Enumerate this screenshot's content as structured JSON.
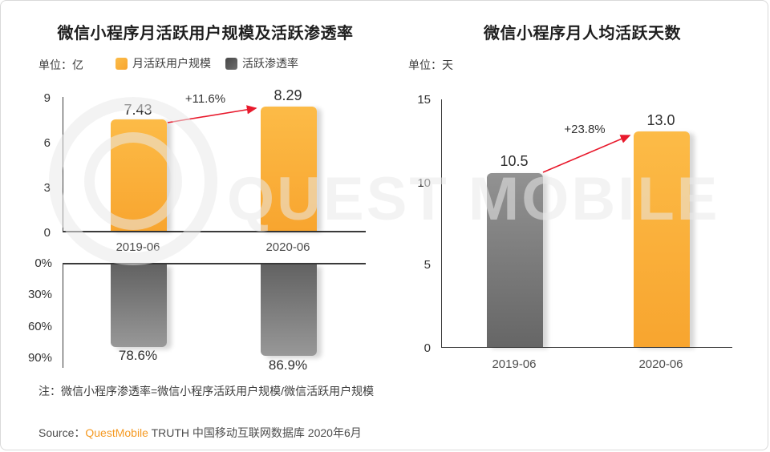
{
  "watermark": {
    "text": "QUEST MOBILE"
  },
  "charts": {
    "left": {
      "title": "微信小程序月活跃用户规模及活跃渗透率",
      "unit": "单位：亿",
      "legend": [
        {
          "label": "月活跃用户规模",
          "color": "#F9AE3B"
        },
        {
          "label": "活跃渗透率",
          "color": "#565656"
        }
      ],
      "mau": {
        "yticks": [
          "9",
          "6",
          "3",
          "0"
        ],
        "categories": [
          "2019-06",
          "2020-06"
        ],
        "value_labels": [
          "7.43",
          "8.29"
        ],
        "growth_label": "+11.6%"
      },
      "penetration": {
        "yticks": [
          "0%",
          "30%",
          "60%",
          "90%"
        ],
        "value_labels": [
          "78.6%",
          "86.9%"
        ]
      }
    },
    "right": {
      "title": "微信小程序月人均活跃天数",
      "unit": "单位：天",
      "yticks": [
        "15",
        "10",
        "5",
        "0"
      ],
      "categories": [
        "2019-06",
        "2020-06"
      ],
      "value_labels": [
        "10.5",
        "13.0"
      ],
      "growth_label": "+23.8%"
    }
  },
  "note": "注：微信小程序渗透率=微信小程序活跃用户规模/微信活跃用户规模",
  "source": {
    "prefix": "Source：",
    "brand": "QuestMobile",
    "suffix": " TRUTH 中国移动互联网数据库 2020年6月"
  },
  "colors": {
    "accent_orange": "#F9AE3B",
    "bar_gray": "#7A7A7A",
    "arrow_red": "#E8192C",
    "brand_orange": "#F59A23"
  },
  "chart_data": [
    {
      "type": "bar",
      "title": "微信小程序月活跃用户规模及活跃渗透率",
      "unit": "亿",
      "categories": [
        "2019-06",
        "2020-06"
      ],
      "series": [
        {
          "name": "月活跃用户规模",
          "values": [
            7.43,
            8.29
          ],
          "ylim": [
            0,
            9
          ],
          "color": "#F9AE3B"
        },
        {
          "name": "活跃渗透率",
          "values": [
            78.6,
            86.9
          ],
          "unit": "%",
          "ylim": [
            0,
            90
          ],
          "inverted_axis": true,
          "color": "#7A7A7A"
        }
      ],
      "annotations": [
        "+11.6%"
      ],
      "legend_position": "top",
      "grid": false
    },
    {
      "type": "bar",
      "title": "微信小程序月人均活跃天数",
      "unit": "天",
      "categories": [
        "2019-06",
        "2020-06"
      ],
      "series": [
        {
          "name": "月人均活跃天数",
          "values": [
            10.5,
            13.0
          ],
          "colors": [
            "#7A7A7A",
            "#F9AE3B"
          ]
        }
      ],
      "annotations": [
        "+23.8%"
      ],
      "ylim": [
        0,
        15
      ],
      "grid": false
    }
  ]
}
